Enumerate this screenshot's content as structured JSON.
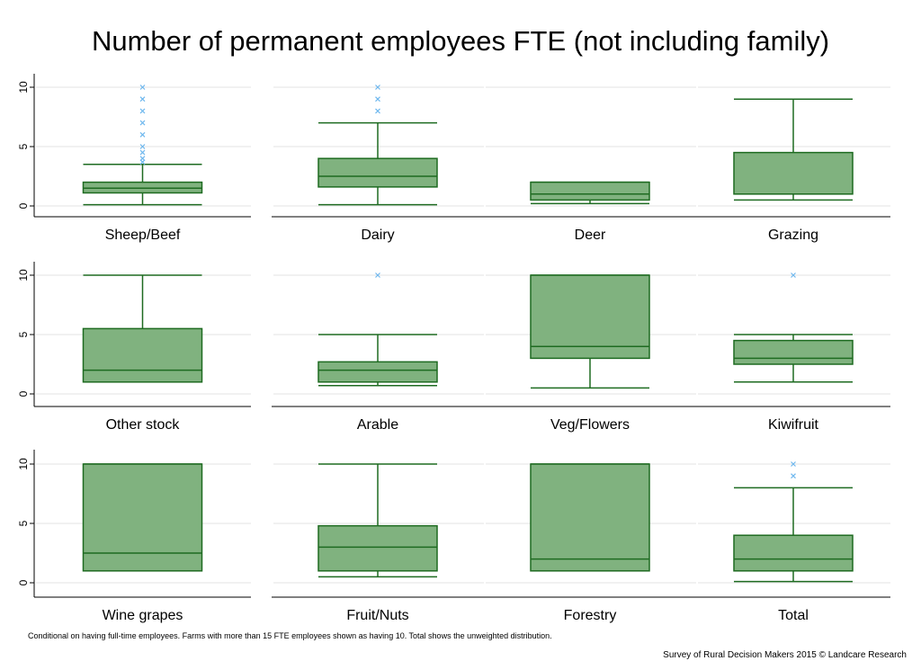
{
  "title": "Number of permanent employees FTE (not including family)",
  "footnote": "Conditional on having full-time employees. Farms with more than 15 FTE employees shown as having 10. Total shows the unweighted distribution.",
  "credit": "Survey of Rural Decision Makers 2015 © Landcare Research",
  "colors": {
    "box_fill": "#80b27f",
    "box_stroke": "#1e6b21",
    "outlier": "#6fb8ee",
    "grid": "#e3e3e3",
    "axis": "#000000"
  },
  "chart_data": {
    "type": "box",
    "y_ticks": [
      0,
      5,
      10
    ],
    "ylim": [
      -0.5,
      10.5
    ],
    "grid": true,
    "layout": "3x4 panels",
    "panels": [
      {
        "name": "Sheep/Beef",
        "min": 0.1,
        "q1": 1.1,
        "median": 1.5,
        "q3": 2.0,
        "max": 3.5,
        "outliers": [
          3.7,
          4.0,
          4.5,
          5.0,
          6.0,
          7.0,
          8.0,
          9.0,
          10.0
        ]
      },
      {
        "name": "Dairy",
        "min": 0.1,
        "q1": 1.6,
        "median": 2.5,
        "q3": 4.0,
        "max": 7.0,
        "outliers": [
          8.0,
          9.0,
          10.0
        ]
      },
      {
        "name": "Deer",
        "min": 0.2,
        "q1": 0.5,
        "median": 1.0,
        "q3": 2.0,
        "max": 2.0,
        "outliers": []
      },
      {
        "name": "Grazing",
        "min": 0.5,
        "q1": 1.0,
        "median": 1.0,
        "q3": 4.5,
        "max": 9.0,
        "outliers": []
      },
      {
        "name": "Other stock",
        "min": 1.0,
        "q1": 1.0,
        "median": 2.0,
        "q3": 5.5,
        "max": 10.0,
        "outliers": []
      },
      {
        "name": "Arable",
        "min": 0.7,
        "q1": 1.0,
        "median": 2.0,
        "q3": 2.7,
        "max": 5.0,
        "outliers": [
          10.0
        ]
      },
      {
        "name": "Veg/Flowers",
        "min": 0.5,
        "q1": 3.0,
        "median": 4.0,
        "q3": 10.0,
        "max": 10.0,
        "outliers": []
      },
      {
        "name": "Kiwifruit",
        "min": 1.0,
        "q1": 2.5,
        "median": 3.0,
        "q3": 4.5,
        "max": 5.0,
        "outliers": [
          10.0
        ]
      },
      {
        "name": "Wine grapes",
        "min": 1.0,
        "q1": 1.0,
        "median": 2.5,
        "q3": 10.0,
        "max": 10.0,
        "outliers": []
      },
      {
        "name": "Fruit/Nuts",
        "min": 0.5,
        "q1": 1.0,
        "median": 3.0,
        "q3": 4.8,
        "max": 10.0,
        "outliers": []
      },
      {
        "name": "Forestry",
        "min": 1.0,
        "q1": 1.0,
        "median": 2.0,
        "q3": 10.0,
        "max": 10.0,
        "outliers": []
      },
      {
        "name": "Total",
        "min": 0.1,
        "q1": 1.0,
        "median": 2.0,
        "q3": 4.0,
        "max": 8.0,
        "outliers": [
          9.0,
          10.0
        ]
      }
    ]
  }
}
